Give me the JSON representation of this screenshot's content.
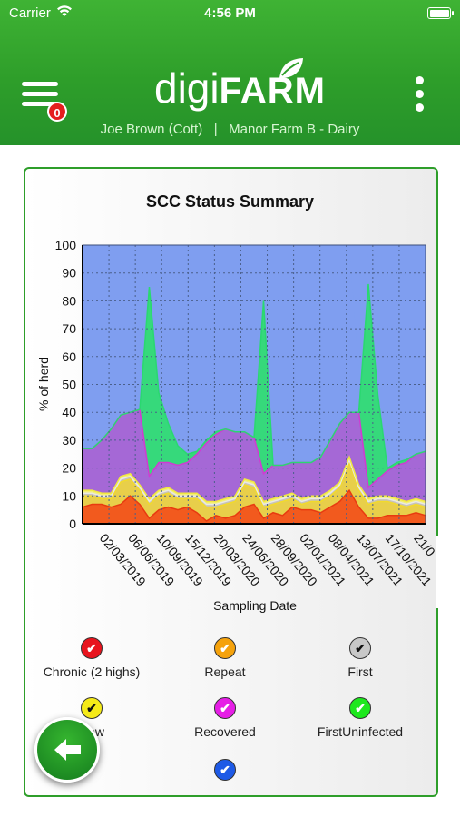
{
  "status_bar": {
    "carrier": "Carrier",
    "time": "4:56 PM"
  },
  "header": {
    "logo_part1": "digi",
    "logo_part2": "FARM",
    "notification_count": "0",
    "user": "Joe Brown (Cott)",
    "separator": "|",
    "farm": "Manor Farm B - Dairy"
  },
  "chart_data": {
    "type": "area",
    "title": "SCC Status Summary",
    "xlabel": "Sampling Date",
    "ylabel": "% of herd",
    "ylim": [
      0,
      100
    ],
    "yticks": [
      0,
      10,
      20,
      30,
      40,
      50,
      60,
      70,
      80,
      90,
      100
    ],
    "xtick_labels": [
      "02/03/2019",
      "06/06/2019",
      "10/09/2019",
      "15/12/2019",
      "20/03/2020",
      "24/06/2020",
      "28/09/2020",
      "02/01/2021",
      "08/04/2021",
      "13/07/2021",
      "17/10/2021",
      "21/0"
    ],
    "stacked": true,
    "grid": true,
    "series": [
      {
        "name": "Chronic (2 highs)",
        "color": "#f25a1e",
        "values": [
          6,
          7,
          7,
          6,
          7,
          10,
          7,
          2,
          5,
          6,
          5,
          6,
          4,
          1,
          3,
          2,
          3,
          6,
          7,
          2,
          4,
          3,
          6,
          5,
          5,
          4,
          6,
          8,
          12,
          6,
          2,
          2,
          3,
          3,
          3,
          4,
          3
        ]
      },
      {
        "name": "Repeat",
        "color": "#e8cf4a",
        "values": [
          4,
          3,
          2,
          3,
          8,
          6,
          5,
          5,
          5,
          5,
          4,
          3,
          5,
          5,
          3,
          5,
          5,
          8,
          6,
          4,
          3,
          5,
          3,
          2,
          3,
          4,
          4,
          5,
          10,
          6,
          5,
          6,
          5,
          4,
          3,
          3,
          3
        ]
      },
      {
        "name": "First",
        "color": "#c8c3b8",
        "values": [
          1,
          1,
          1,
          1,
          1,
          1,
          1,
          1,
          1,
          1,
          1,
          1,
          1,
          1,
          1,
          1,
          1,
          1,
          1,
          1,
          1,
          1,
          1,
          1,
          1,
          1,
          1,
          1,
          1,
          1,
          1,
          1,
          1,
          1,
          1,
          1,
          1
        ]
      },
      {
        "name": "New",
        "color": "#f5f07a",
        "values": [
          1,
          1,
          1,
          1,
          1,
          1,
          1,
          1,
          1,
          1,
          1,
          1,
          1,
          1,
          1,
          1,
          1,
          1,
          1,
          1,
          1,
          1,
          1,
          1,
          1,
          1,
          1,
          1,
          1,
          1,
          1,
          1,
          1,
          1,
          1,
          1,
          1
        ]
      },
      {
        "name": "Recovered",
        "color": "#a568d6",
        "values": [
          15,
          15,
          19,
          23,
          22,
          22,
          27,
          8,
          10,
          9,
          10,
          11,
          14,
          21,
          24,
          25,
          23,
          17,
          16,
          10,
          12,
          11,
          11,
          13,
          12,
          14,
          18,
          21,
          16,
          26,
          4,
          6,
          9,
          12,
          14,
          16,
          18
        ]
      },
      {
        "name": "FirstUninfected",
        "color": "#36d97b",
        "values": [
          0,
          0,
          0,
          0,
          0,
          0,
          0,
          68,
          25,
          14,
          7,
          3,
          1,
          1,
          1,
          0,
          0,
          0,
          0,
          62,
          0,
          0,
          0,
          0,
          0,
          0,
          0,
          0,
          0,
          0,
          73,
          30,
          1,
          1,
          1,
          0,
          0
        ]
      },
      {
        "name": "",
        "color": "#7f9ef0",
        "values": [
          73,
          73,
          70,
          66,
          61,
          60,
          59,
          15,
          53,
          64,
          72,
          75,
          74,
          71,
          67,
          66,
          67,
          67,
          69,
          20,
          79,
          79,
          78,
          78,
          78,
          76,
          70,
          64,
          59,
          15,
          15,
          54,
          81,
          78,
          77,
          75,
          74
        ]
      }
    ]
  },
  "legend": [
    {
      "label": "Chronic (2 highs)",
      "color": "#e8141e",
      "check": "✔"
    },
    {
      "label": "Repeat",
      "color": "#f5a20c",
      "check": "✔"
    },
    {
      "label": "First",
      "color": "#c8c8c8",
      "check": "✔"
    },
    {
      "label": "New",
      "color": "#f5ea18",
      "check": "✔"
    },
    {
      "label": "Recovered",
      "color": "#e61ee6",
      "check": "✔"
    },
    {
      "label": "FirstUninfected",
      "color": "#1ee81e",
      "check": "✔"
    },
    {
      "label": "",
      "color": "#1e5ae6",
      "check": "✔"
    }
  ],
  "fab": {
    "icon": "arrow-left-icon"
  }
}
